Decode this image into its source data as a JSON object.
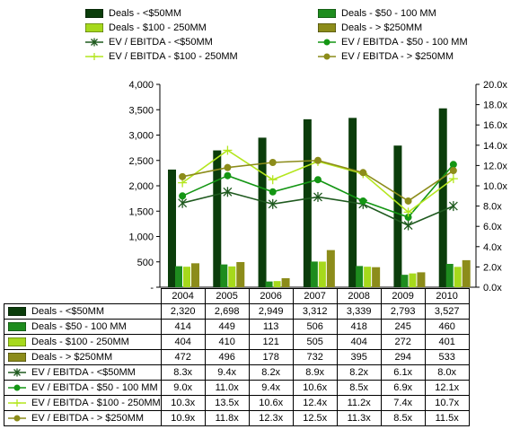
{
  "chart_data": {
    "type": "bar",
    "categories": [
      "2004",
      "2005",
      "2006",
      "2007",
      "2008",
      "2009",
      "2010"
    ],
    "y_left": {
      "ylim": [
        0,
        4000
      ],
      "ticks": [
        "-",
        "500",
        "1,000",
        "1,500",
        "2,000",
        "2,500",
        "3,000",
        "3,500",
        "4,000"
      ]
    },
    "y_right": {
      "ylim": [
        0,
        20
      ],
      "ticks": [
        "0.0x",
        "2.0x",
        "4.0x",
        "6.0x",
        "8.0x",
        "10.0x",
        "12.0x",
        "14.0x",
        "16.0x",
        "18.0x",
        "20.0x"
      ]
    },
    "legend_position": "top",
    "series": [
      {
        "name": "Deals - <$50MM",
        "kind": "bar",
        "axis": "left",
        "color": "#0b3d0b",
        "values": [
          2320,
          2698,
          2949,
          3312,
          3339,
          2793,
          3527
        ],
        "labels": [
          "2,320",
          "2,698",
          "2,949",
          "3,312",
          "3,339",
          "2,793",
          "3,527"
        ]
      },
      {
        "name": "Deals - $50 - 100 MM",
        "kind": "bar",
        "axis": "left",
        "color": "#1e8c1e",
        "values": [
          414,
          449,
          113,
          506,
          418,
          245,
          460
        ],
        "labels": [
          "414",
          "449",
          "113",
          "506",
          "418",
          "245",
          "460"
        ]
      },
      {
        "name": "Deals - $100 - 250MM",
        "kind": "bar",
        "axis": "left",
        "color": "#a6d91c",
        "values": [
          404,
          410,
          121,
          505,
          404,
          272,
          401
        ],
        "labels": [
          "404",
          "410",
          "121",
          "505",
          "404",
          "272",
          "401"
        ]
      },
      {
        "name": "Deals - > $250MM",
        "kind": "bar",
        "axis": "left",
        "color": "#8c8c1a",
        "values": [
          472,
          496,
          178,
          732,
          395,
          294,
          533
        ],
        "labels": [
          "472",
          "496",
          "178",
          "732",
          "395",
          "294",
          "533"
        ]
      },
      {
        "name": "EV / EBITDA - <$50MM",
        "kind": "line",
        "axis": "right",
        "color": "#1f5a1f",
        "marker": "star",
        "values": [
          8.3,
          9.4,
          8.2,
          8.9,
          8.2,
          6.1,
          8.0
        ],
        "labels": [
          "8.3x",
          "9.4x",
          "8.2x",
          "8.9x",
          "8.2x",
          "6.1x",
          "8.0x"
        ]
      },
      {
        "name": "EV / EBITDA - $50 - 100 MM",
        "kind": "line",
        "axis": "right",
        "color": "#149614",
        "marker": "circle",
        "values": [
          9.0,
          11.0,
          9.4,
          10.6,
          8.5,
          6.9,
          12.1
        ],
        "labels": [
          "9.0x",
          "11.0x",
          "9.4x",
          "10.6x",
          "8.5x",
          "6.9x",
          "12.1x"
        ]
      },
      {
        "name": "EV / EBITDA - $100 - 250MM",
        "kind": "line",
        "axis": "right",
        "color": "#b4e61e",
        "marker": "plus",
        "values": [
          10.3,
          13.5,
          10.6,
          12.4,
          11.2,
          7.4,
          10.7
        ],
        "labels": [
          "10.3x",
          "13.5x",
          "10.6x",
          "12.4x",
          "11.2x",
          "7.4x",
          "10.7x"
        ]
      },
      {
        "name": "EV / EBITDA - > $250MM",
        "kind": "line",
        "axis": "right",
        "color": "#8c8c1a",
        "marker": "circle",
        "values": [
          10.9,
          11.8,
          12.3,
          12.5,
          11.3,
          8.5,
          11.5
        ],
        "labels": [
          "10.9x",
          "11.8x",
          "12.3x",
          "12.5x",
          "11.3x",
          "8.5x",
          "11.5x"
        ]
      }
    ]
  }
}
